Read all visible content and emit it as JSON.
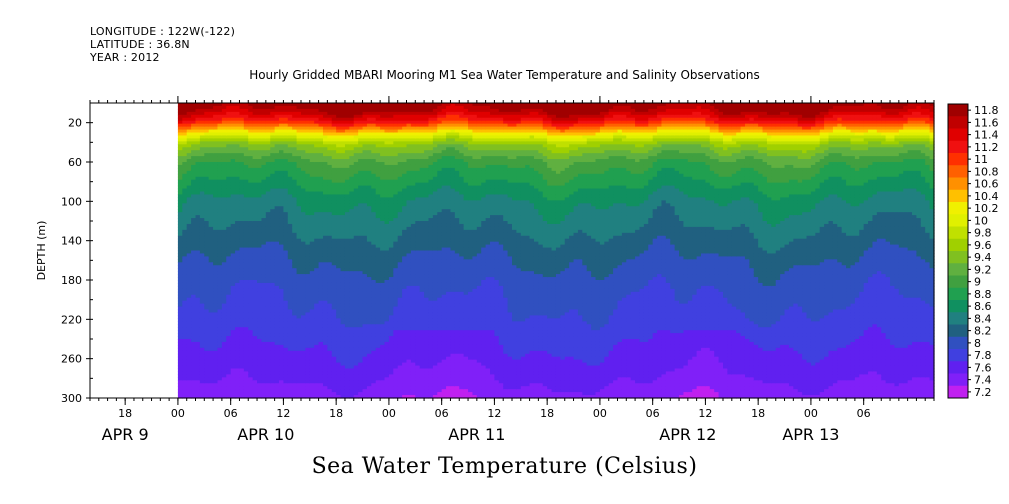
{
  "header": {
    "longitude": "LONGITUDE : 122W(-122)",
    "latitude": "LATITUDE : 36.8N",
    "year": "YEAR : 2012"
  },
  "chart_data": {
    "type": "heatmap",
    "title": "Hourly Gridded MBARI Mooring M1 Sea Water Temperature and Salinity Observations",
    "bottom_title": "Sea Water Temperature (Celsius)",
    "ylabel": "DEPTH (m)",
    "ylim": [
      300,
      0
    ],
    "y_ticks": [
      20,
      60,
      100,
      140,
      180,
      220,
      260,
      300
    ],
    "x_start": "2012-04-09T14:00",
    "x_end": "2012-04-13T14:00",
    "data_start_hours": 10,
    "x_tick_labels": [
      {
        "hour": 4,
        "label": "18"
      },
      {
        "hour": 10,
        "label": "00"
      },
      {
        "hour": 16,
        "label": "06"
      },
      {
        "hour": 22,
        "label": "12"
      },
      {
        "hour": 28,
        "label": "18"
      },
      {
        "hour": 34,
        "label": "00"
      },
      {
        "hour": 40,
        "label": "06"
      },
      {
        "hour": 46,
        "label": "12"
      },
      {
        "hour": 52,
        "label": "18"
      },
      {
        "hour": 58,
        "label": "00"
      },
      {
        "hour": 64,
        "label": "06"
      },
      {
        "hour": 70,
        "label": "12"
      },
      {
        "hour": 76,
        "label": "18"
      },
      {
        "hour": 82,
        "label": "00"
      },
      {
        "hour": 88,
        "label": "06"
      }
    ],
    "date_labels": [
      {
        "hour": 4,
        "label": "APR  9"
      },
      {
        "hour": 20,
        "label": "APR 10"
      },
      {
        "hour": 44,
        "label": "APR 11"
      },
      {
        "hour": 68,
        "label": "APR 12"
      },
      {
        "hour": 82,
        "label": "APR 13"
      }
    ],
    "colorbar": {
      "labels": [
        "11.8",
        "11.6",
        "11.4",
        "11.2",
        "11",
        "10.8",
        "10.6",
        "10.4",
        "10.2",
        "10",
        "9.8",
        "9.6",
        "9.4",
        "9.2",
        "9",
        "8.8",
        "8.6",
        "8.4",
        "8.2",
        "8",
        "7.8",
        "7.6",
        "7.4",
        "7.2"
      ],
      "colors": [
        "#a00000",
        "#c00000",
        "#e00000",
        "#f01010",
        "#ff3000",
        "#ff6000",
        "#ff9000",
        "#ffc000",
        "#f0f000",
        "#e0f000",
        "#c0e000",
        "#a0d000",
        "#80c020",
        "#60b040",
        "#40a040",
        "#20a050",
        "#109060",
        "#208080",
        "#206080",
        "#3050c0",
        "#4040e0",
        "#6020f0",
        "#8020f8",
        "#c020f0"
      ]
    },
    "temperature_profile": {
      "depth_m": [
        2,
        10,
        18,
        26,
        34,
        42,
        60,
        80,
        100,
        130,
        160,
        190,
        220,
        250,
        280,
        300
      ],
      "temp_c": [
        11.9,
        11.6,
        11.2,
        10.6,
        10.0,
        9.5,
        9.0,
        8.75,
        8.5,
        8.3,
        8.1,
        7.95,
        7.85,
        7.7,
        7.55,
        7.4
      ]
    }
  }
}
